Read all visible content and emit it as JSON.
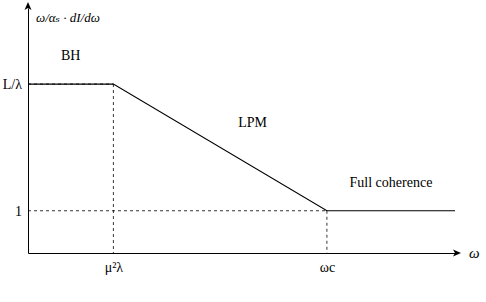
{
  "chart_data": {
    "type": "line",
    "x_label": "ω",
    "y_label": "ω/αₛ · dI/dω",
    "annotations": [
      "BH",
      "LPM",
      "Full coherence"
    ],
    "x": [
      0,
      2,
      7,
      10
    ],
    "values": [
      4,
      4,
      1,
      1
    ],
    "color": "#000000",
    "xlim": [
      0,
      10
    ],
    "ylim": [
      0,
      5.8
    ],
    "xticks": [
      {
        "value": 2,
        "label": "μ²λ"
      },
      {
        "value": 7,
        "label": "ωc"
      }
    ],
    "yticks": [
      1,
      {
        "value": 4,
        "label": "L/λ"
      }
    ],
    "grid": false
  }
}
